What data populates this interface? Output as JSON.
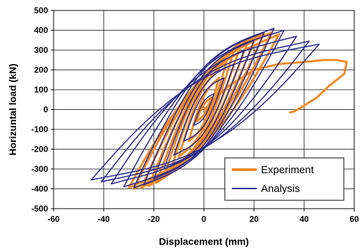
{
  "chart_data": {
    "type": "line",
    "xlabel": "Displacement (mm)",
    "ylabel": "Horizuntal load (kN)",
    "xlim": [
      -60,
      60
    ],
    "ylim": [
      -500,
      500
    ],
    "xticks": [
      -60,
      -40,
      -20,
      0,
      20,
      40,
      60
    ],
    "yticks": [
      500,
      400,
      300,
      200,
      100,
      0,
      -100,
      -200,
      -300,
      -400,
      -500
    ],
    "grid": true,
    "legend_position": "bottom-right",
    "series": [
      {
        "name": "Experiment",
        "color": "#f08a24",
        "loops": [
          {
            "dmax": 3,
            "fmax": 60,
            "dmin": -3,
            "fmin": -60,
            "r": 0.25
          },
          {
            "dmax": 6,
            "fmax": 160,
            "dmin": -6,
            "fmin": -160,
            "r": 0.25
          },
          {
            "dmax": 9,
            "fmax": 240,
            "dmin": -10,
            "fmin": -240,
            "r": 0.25
          },
          {
            "dmax": 12,
            "fmax": 300,
            "dmin": -13,
            "fmin": -300,
            "r": 0.25
          },
          {
            "dmax": 15,
            "fmax": 340,
            "dmin": -16,
            "fmin": -340,
            "r": 0.25
          },
          {
            "dmax": 18,
            "fmax": 360,
            "dmin": -19,
            "fmin": -370,
            "r": 0.25
          },
          {
            "dmax": 21,
            "fmax": 375,
            "dmin": -22,
            "fmin": -385,
            "r": 0.25
          },
          {
            "dmax": 24,
            "fmax": 385,
            "dmin": -25,
            "fmin": -395,
            "r": 0.25
          },
          {
            "dmax": 27,
            "fmax": 390,
            "dmin": -28,
            "fmin": -400,
            "r": 0.25
          },
          {
            "dmax": 30,
            "fmax": 380,
            "dmin": -30,
            "fmin": -395,
            "r": 0.25
          }
        ],
        "tail": [
          [
            0,
            0
          ],
          [
            10,
            120
          ],
          [
            20,
            200
          ],
          [
            30,
            230
          ],
          [
            40,
            240
          ],
          [
            48,
            250
          ],
          [
            53,
            250
          ],
          [
            57,
            240
          ],
          [
            56,
            180
          ],
          [
            50,
            120
          ],
          [
            45,
            60
          ],
          [
            40,
            20
          ],
          [
            36,
            -10
          ],
          [
            34,
            -15
          ]
        ]
      },
      {
        "name": "Analysis",
        "color": "#2e2e8f",
        "loops": [
          {
            "dmax": 4,
            "fmax": 80,
            "dmin": -4,
            "fmin": -80,
            "r": 0.3
          },
          {
            "dmax": 8,
            "fmax": 160,
            "dmin": -8,
            "fmin": -160,
            "r": 0.3
          },
          {
            "dmax": 12,
            "fmax": 230,
            "dmin": -12,
            "fmin": -230,
            "r": 0.3
          },
          {
            "dmax": 16,
            "fmax": 300,
            "dmin": -16,
            "fmin": -300,
            "r": 0.3
          },
          {
            "dmax": 20,
            "fmax": 350,
            "dmin": -20,
            "fmin": -350,
            "r": 0.3
          },
          {
            "dmax": 24,
            "fmax": 390,
            "dmin": -24,
            "fmin": -380,
            "r": 0.3
          },
          {
            "dmax": 28,
            "fmax": 410,
            "dmin": -28,
            "fmin": -395,
            "r": 0.3
          },
          {
            "dmax": 32,
            "fmax": 400,
            "dmin": -32,
            "fmin": -390,
            "r": 0.3
          },
          {
            "dmax": 37,
            "fmax": 370,
            "dmin": -37,
            "fmin": -375,
            "r": 0.3
          },
          {
            "dmax": 42,
            "fmax": 345,
            "dmin": -41,
            "fmin": -365,
            "r": 0.3
          },
          {
            "dmax": 46,
            "fmax": 330,
            "dmin": -45,
            "fmin": -355,
            "r": 0.3
          }
        ]
      }
    ]
  }
}
